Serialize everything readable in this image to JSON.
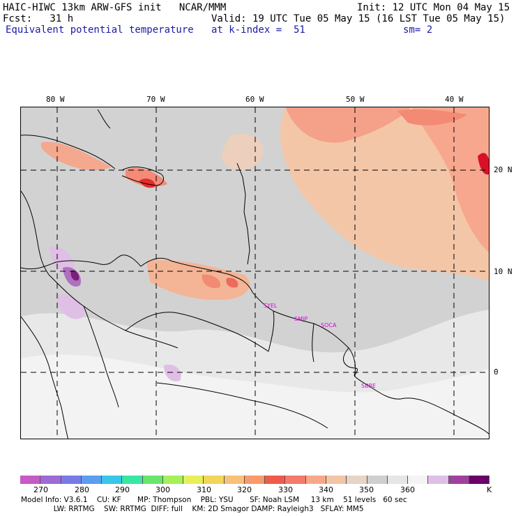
{
  "header": {
    "line1_left": "HAIC-HIWC 13km ARW-GFS init   NCAR/MMM",
    "line1_right": "Init: 12 UTC Mon 04 May 15",
    "line2_left": "Fcst:   31 h",
    "line2_right": "Valid: 19 UTC Tue 05 May 15 (16 LST Tue 05 May 15)",
    "line3_left": "Equivalent potential temperature",
    "line3_mid": "at k-index =  51",
    "line3_right": "sm= 2"
  },
  "map": {
    "lon_labels": [
      "80 W",
      "70 W",
      "60 W",
      "50 W",
      "40 W"
    ],
    "lat_labels": [
      "20 N",
      "10 N",
      "0"
    ],
    "stations": [
      "SYEL",
      "SMJP",
      "SOCA",
      "SBBE"
    ]
  },
  "legend": {
    "colors": [
      "#c65ac6",
      "#9e6ad6",
      "#7a7ae6",
      "#5a9ef0",
      "#3ac6e6",
      "#3ae6a6",
      "#6ae66a",
      "#a6f05a",
      "#e6f05a",
      "#f0d65a",
      "#f8c07a",
      "#f89a6a",
      "#f05a4a",
      "#f47a6a",
      "#f8a88a",
      "#f4c4a6",
      "#e6d4c6",
      "#cfcfcf",
      "#e6e6e6",
      "#f4f4f4",
      "#e0bfe6",
      "#a040a0",
      "#6a006a"
    ],
    "tick_labels": [
      "270",
      "280",
      "290",
      "300",
      "310",
      "320",
      "330",
      "340",
      "350",
      "360",
      "K"
    ]
  },
  "footer": {
    "line1": "Model Info: V3.6.1    CU: KF       MP: Thompson    PBL: YSU       SF: Noah LSM     13 km    51 levels   60 sec",
    "line2": "              LW: RRTMG    SW: RRTMG  DIFF: full    KM: 2D Smagor DAMP: Rayleigh3   SFLAY: MM5"
  }
}
